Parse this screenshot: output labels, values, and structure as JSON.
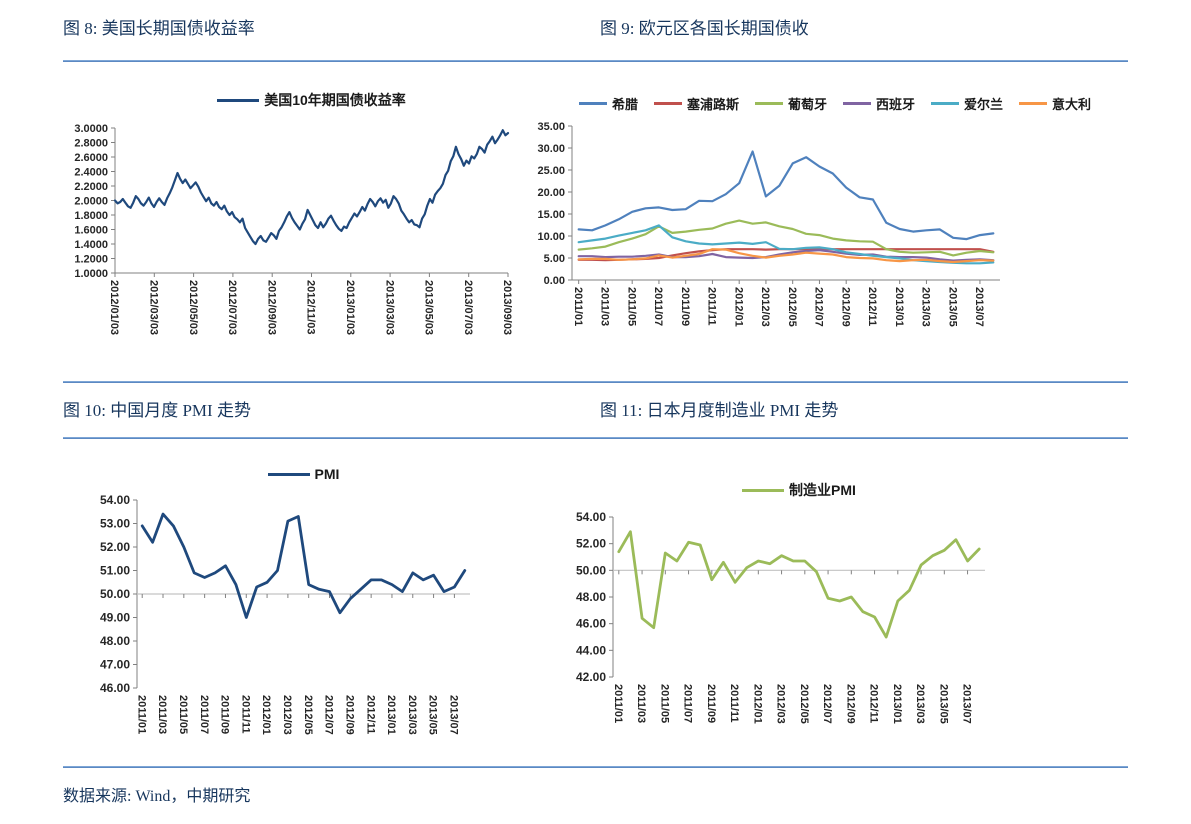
{
  "titles": {
    "fig8": "图 8: 美国长期国债收益率",
    "fig9": "图 9: 欧元区各国长期国债收",
    "fig10": "图 10: 中国月度 PMI 走势",
    "fig11": "图 11: 日本月度制造业 PMI 走势"
  },
  "footer": {
    "source": "数据来源: Wind，中期研究"
  },
  "colors": {
    "title_text": "#17365d",
    "divider": "#5b8fcb",
    "axis": "#808080",
    "tick_text": "#262626",
    "refline": "#c3c3c3",
    "navy": "#1F497D",
    "excel_blue": "#4F81BD",
    "excel_red": "#C0504D",
    "excel_green": "#9BBB59",
    "excel_purple": "#8064A2",
    "excel_cyan": "#4BACC6",
    "excel_orange": "#F79646"
  },
  "chart_data": [
    {
      "type": "line",
      "title": "美国10年期国债收益率",
      "legend": [
        {
          "name": "美国10年期国债收益率",
          "color": "#1F497D"
        }
      ],
      "legend_position": "top",
      "grid": false,
      "x_mode": "edge",
      "baseline": true,
      "ylim": [
        1.0,
        3.0
      ],
      "y_tick_labels": [
        "3.0000",
        "2.8000",
        "2.6000",
        "2.4000",
        "2.2000",
        "2.0000",
        "1.8000",
        "1.6000",
        "1.4000",
        "1.2000",
        "1.0000"
      ],
      "x_tick_labels": [
        "2012/01/03",
        "2012/03/03",
        "2012/05/03",
        "2012/07/03",
        "2012/09/03",
        "2012/11/03",
        "2013/01/03",
        "2013/03/03",
        "2013/05/03",
        "2013/07/03",
        "2013/09/03"
      ],
      "series": [
        {
          "name": "美国10年期国债收益率",
          "color": "#1F497D",
          "values": [
            2.0,
            1.96,
            1.98,
            2.02,
            1.97,
            1.92,
            1.9,
            1.97,
            2.06,
            2.02,
            1.96,
            1.93,
            1.98,
            2.04,
            1.96,
            1.91,
            1.98,
            2.03,
            1.98,
            1.94,
            2.03,
            2.1,
            2.18,
            2.28,
            2.38,
            2.3,
            2.24,
            2.29,
            2.23,
            2.17,
            2.21,
            2.25,
            2.19,
            2.11,
            2.05,
            1.99,
            2.04,
            1.96,
            1.93,
            1.98,
            1.91,
            1.88,
            1.93,
            1.85,
            1.8,
            1.84,
            1.77,
            1.74,
            1.7,
            1.75,
            1.62,
            1.56,
            1.5,
            1.44,
            1.4,
            1.47,
            1.51,
            1.45,
            1.43,
            1.49,
            1.55,
            1.52,
            1.47,
            1.58,
            1.63,
            1.7,
            1.78,
            1.84,
            1.76,
            1.7,
            1.65,
            1.6,
            1.68,
            1.74,
            1.87,
            1.8,
            1.73,
            1.66,
            1.62,
            1.7,
            1.63,
            1.68,
            1.75,
            1.79,
            1.72,
            1.66,
            1.61,
            1.58,
            1.64,
            1.62,
            1.7,
            1.76,
            1.82,
            1.78,
            1.84,
            1.91,
            1.86,
            1.95,
            2.02,
            1.98,
            1.92,
            1.99,
            2.03,
            1.97,
            2.01,
            1.9,
            1.96,
            2.06,
            2.02,
            1.96,
            1.86,
            1.81,
            1.75,
            1.7,
            1.73,
            1.67,
            1.66,
            1.63,
            1.75,
            1.81,
            1.93,
            2.02,
            1.97,
            2.08,
            2.13,
            2.17,
            2.23,
            2.35,
            2.41,
            2.54,
            2.61,
            2.74,
            2.64,
            2.57,
            2.48,
            2.55,
            2.51,
            2.61,
            2.58,
            2.64,
            2.74,
            2.71,
            2.66,
            2.77,
            2.82,
            2.88,
            2.79,
            2.84,
            2.9,
            2.97,
            2.9,
            2.93
          ]
        }
      ]
    },
    {
      "type": "line",
      "title": "欧元区各国长期国债收",
      "legend": [
        {
          "name": "希腊",
          "color": "#4F81BD"
        },
        {
          "name": "塞浦路斯",
          "color": "#C0504D"
        },
        {
          "name": "葡萄牙",
          "color": "#9BBB59"
        },
        {
          "name": "西班牙",
          "color": "#8064A2"
        },
        {
          "name": "爱尔兰",
          "color": "#4BACC6"
        },
        {
          "name": "意大利",
          "color": "#F79646"
        }
      ],
      "legend_position": "top",
      "grid": false,
      "x_mode": "between",
      "baseline": true,
      "ylim": [
        0,
        35
      ],
      "y_tick_labels": [
        "35.00",
        "30.00",
        "25.00",
        "20.00",
        "15.00",
        "10.00",
        "5.00",
        "0.00"
      ],
      "x_tick_labels": [
        "2011/01",
        "2011/03",
        "2011/05",
        "2011/07",
        "2011/09",
        "2011/11",
        "2012/01",
        "2012/03",
        "2012/05",
        "2012/07",
        "2012/09",
        "2012/11",
        "2013/01",
        "2013/03",
        "2013/05",
        "2013/07"
      ],
      "series": [
        {
          "name": "希腊",
          "color": "#4F81BD",
          "values": [
            11.5,
            11.3,
            12.4,
            13.8,
            15.5,
            16.3,
            16.5,
            15.9,
            16.1,
            18.0,
            17.9,
            19.5,
            22.0,
            29.2,
            19.0,
            21.4,
            26.5,
            27.9,
            25.8,
            24.2,
            21.0,
            18.8,
            18.3,
            13.0,
            11.6,
            11.0,
            11.3,
            11.5,
            9.6,
            9.3,
            10.2,
            10.6
          ]
        },
        {
          "name": "塞浦路斯",
          "color": "#C0504D",
          "values": [
            4.6,
            4.6,
            4.5,
            4.6,
            4.7,
            4.8,
            5.0,
            5.6,
            6.1,
            6.5,
            6.8,
            7.0,
            7.0,
            7.0,
            6.9,
            7.0,
            7.0,
            7.0,
            7.0,
            7.0,
            7.0,
            7.0,
            7.0,
            7.0,
            7.0,
            7.0,
            7.0,
            7.0,
            7.0,
            7.0,
            7.0,
            6.4
          ]
        },
        {
          "name": "葡萄牙",
          "color": "#9BBB59",
          "values": [
            6.9,
            7.2,
            7.6,
            8.6,
            9.4,
            10.4,
            12.2,
            10.7,
            11.0,
            11.4,
            11.7,
            12.8,
            13.5,
            12.8,
            13.1,
            12.2,
            11.6,
            10.5,
            10.2,
            9.4,
            9.0,
            8.8,
            8.7,
            7.0,
            6.4,
            6.2,
            6.3,
            6.4,
            5.6,
            6.2,
            6.6,
            6.3
          ]
        },
        {
          "name": "西班牙",
          "color": "#8064A2",
          "values": [
            5.4,
            5.4,
            5.2,
            5.3,
            5.3,
            5.5,
            5.8,
            5.2,
            5.2,
            5.4,
            5.9,
            5.2,
            5.1,
            5.0,
            5.2,
            5.8,
            6.3,
            6.6,
            6.8,
            6.4,
            6.0,
            5.7,
            5.8,
            5.3,
            5.2,
            5.2,
            5.1,
            4.7,
            4.4,
            4.6,
            4.7,
            4.5
          ]
        },
        {
          "name": "爱尔兰",
          "color": "#4BACC6",
          "values": [
            8.6,
            9.0,
            9.4,
            10.1,
            10.7,
            11.3,
            12.4,
            9.7,
            8.8,
            8.3,
            8.1,
            8.3,
            8.5,
            8.2,
            8.6,
            7.1,
            7.0,
            7.3,
            7.4,
            7.0,
            6.3,
            5.9,
            5.5,
            5.2,
            4.9,
            4.5,
            4.3,
            4.1,
            3.9,
            3.8,
            3.8,
            4.0
          ]
        },
        {
          "name": "意大利",
          "color": "#F79646",
          "values": [
            4.7,
            4.8,
            4.8,
            4.6,
            4.7,
            4.9,
            5.6,
            5.1,
            5.5,
            5.9,
            7.0,
            6.9,
            6.1,
            5.5,
            5.1,
            5.5,
            5.8,
            6.2,
            6.0,
            5.8,
            5.2,
            5.0,
            4.9,
            4.5,
            4.3,
            4.5,
            4.6,
            4.3,
            4.1,
            4.3,
            4.5,
            4.4
          ]
        }
      ]
    },
    {
      "type": "line",
      "title": "PMI",
      "legend": [
        {
          "name": "PMI",
          "color": "#1F497D"
        }
      ],
      "legend_position": "top",
      "grid": false,
      "x_mode": "between",
      "baseline": false,
      "refline": 50,
      "ylim": [
        46,
        54
      ],
      "y_tick_labels": [
        "54.00",
        "53.00",
        "52.00",
        "51.00",
        "50.00",
        "49.00",
        "48.00",
        "47.00",
        "46.00"
      ],
      "x_tick_labels": [
        "2011/01",
        "2011/03",
        "2011/05",
        "2011/07",
        "2011/09",
        "2011/11",
        "2012/01",
        "2012/03",
        "2012/05",
        "2012/07",
        "2012/09",
        "2012/11",
        "2013/01",
        "2013/03",
        "2013/05",
        "2013/07"
      ],
      "series": [
        {
          "name": "PMI",
          "color": "#1F497D",
          "values": [
            52.9,
            52.2,
            53.4,
            52.9,
            52.0,
            50.9,
            50.7,
            50.9,
            51.2,
            50.4,
            49.0,
            50.3,
            50.5,
            51.0,
            53.1,
            53.3,
            50.4,
            50.2,
            50.1,
            49.2,
            49.8,
            50.2,
            50.6,
            50.6,
            50.4,
            50.1,
            50.9,
            50.6,
            50.8,
            50.1,
            50.3,
            51.0
          ]
        }
      ]
    },
    {
      "type": "line",
      "title": "制造业PMI",
      "legend": [
        {
          "name": "制造业PMI",
          "color": "#9BBB59"
        }
      ],
      "legend_position": "top",
      "grid": false,
      "x_mode": "between",
      "baseline": false,
      "refline": 50,
      "ylim": [
        42,
        54
      ],
      "y_tick_labels": [
        "54.00",
        "52.00",
        "50.00",
        "48.00",
        "46.00",
        "44.00",
        "42.00"
      ],
      "x_tick_labels": [
        "2011/01",
        "2011/03",
        "2011/05",
        "2011/07",
        "2011/09",
        "2011/11",
        "2012/01",
        "2012/03",
        "2012/05",
        "2012/07",
        "2012/09",
        "2012/11",
        "2013/01",
        "2013/03",
        "2013/05",
        "2013/07"
      ],
      "series": [
        {
          "name": "制造业PMI",
          "color": "#9BBB59",
          "values": [
            51.4,
            52.9,
            46.4,
            45.7,
            51.3,
            50.7,
            52.1,
            51.9,
            49.3,
            50.6,
            49.1,
            50.2,
            50.7,
            50.5,
            51.1,
            50.7,
            50.7,
            49.9,
            47.9,
            47.7,
            48.0,
            46.9,
            46.5,
            45.0,
            47.7,
            48.5,
            50.4,
            51.1,
            51.5,
            52.3,
            50.7,
            51.6
          ]
        }
      ]
    }
  ]
}
